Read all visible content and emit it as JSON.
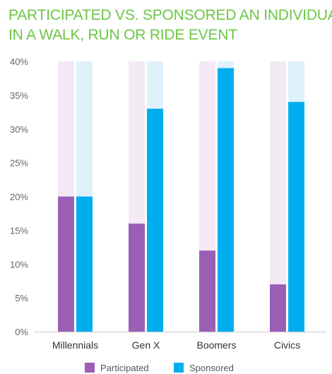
{
  "title_lines": [
    "PARTICIPATED VS. SPONSORED AN INDIVIDUAL",
    "IN A WALK, RUN OR RIDE EVENT"
  ],
  "colors": {
    "title": "#6cc644",
    "participated": "#9b5fb5",
    "participated_track": "#f3eaf5",
    "sponsored": "#00aeef",
    "sponsored_track": "#dff2fb"
  },
  "chart_data": {
    "type": "bar",
    "title": "PARTICIPATED VS. SPONSORED AN INDIVIDUAL IN A WALK, RUN OR RIDE EVENT",
    "categories": [
      "Millennials",
      "Gen X",
      "Boomers",
      "Civics"
    ],
    "series": [
      {
        "name": "Participated",
        "values": [
          20,
          16,
          12,
          7
        ]
      },
      {
        "name": "Sponsored",
        "values": [
          20,
          33,
          39,
          34
        ]
      }
    ],
    "yticks": [
      "0%",
      "5%",
      "10%",
      "15%",
      "20%",
      "25%",
      "30%",
      "35%",
      "40%"
    ],
    "ylim": [
      0,
      40
    ],
    "legend_position": "bottom",
    "grid": false
  }
}
